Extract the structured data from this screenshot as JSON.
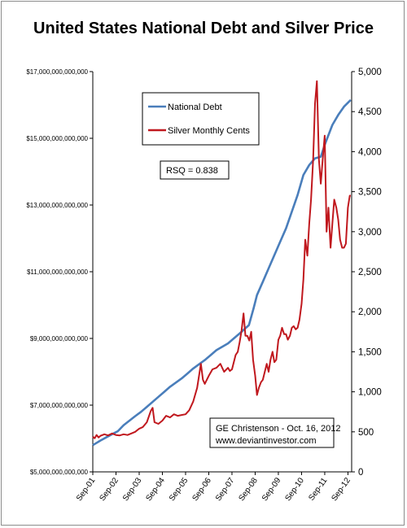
{
  "chart_data": {
    "type": "line",
    "title": "United States National Debt and Silver Price",
    "x_ticks": [
      "Sep-01",
      "Sep-02",
      "Sep-03",
      "Sep-04",
      "Sep-05",
      "Sep-06",
      "Sep-07",
      "Sep-08",
      "Sep-09",
      "Sep-10",
      "Sep-11",
      "Sep-12"
    ],
    "x_range": [
      2001.67,
      2012.83
    ],
    "y_left": {
      "ticks": [
        "$5,000,000,000,000",
        "$7,000,000,000,000",
        "$9,000,000,000,000",
        "$11,000,000,000,000",
        "$13,000,000,000,000",
        "$15,000,000,000,000",
        "$17,000,000,000,000"
      ],
      "range": [
        5000000000000,
        17000000000000
      ]
    },
    "y_right": {
      "ticks": [
        "0",
        "500",
        "1,000",
        "1,500",
        "2,000",
        "2,500",
        "3,000",
        "3,500",
        "4,000",
        "4,500",
        "5,000"
      ],
      "range": [
        0,
        5000
      ]
    },
    "legend": {
      "placement": "top-left",
      "entries": [
        "National Debt",
        "Silver Monthly Cents"
      ]
    },
    "annotations": {
      "rsq": "RSQ = 0.838",
      "credit_line1": "GE Christenson - Oct. 16, 2012",
      "credit_line2": "www.deviantinvestor.com"
    },
    "series": [
      {
        "name": "National Debt",
        "axis": "left",
        "color": "#4a7ebb",
        "points": [
          [
            2001.67,
            5800000000000.0
          ],
          [
            2002.0,
            5940000000000.0
          ],
          [
            2002.5,
            6130000000000.0
          ],
          [
            2002.75,
            6220000000000.0
          ],
          [
            2003.0,
            6400000000000.0
          ],
          [
            2003.5,
            6670000000000.0
          ],
          [
            2003.75,
            6800000000000.0
          ],
          [
            2004.0,
            6950000000000.0
          ],
          [
            2004.5,
            7250000000000.0
          ],
          [
            2004.75,
            7400000000000.0
          ],
          [
            2005.0,
            7550000000000.0
          ],
          [
            2005.5,
            7800000000000.0
          ],
          [
            2005.75,
            7950000000000.0
          ],
          [
            2006.0,
            8100000000000.0
          ],
          [
            2006.5,
            8350000000000.0
          ],
          [
            2006.75,
            8500000000000.0
          ],
          [
            2007.0,
            8650000000000.0
          ],
          [
            2007.5,
            8850000000000.0
          ],
          [
            2007.75,
            9000000000000.0
          ],
          [
            2008.0,
            9150000000000.0
          ],
          [
            2008.4,
            9400000000000.0
          ],
          [
            2008.6,
            9900000000000.0
          ],
          [
            2008.75,
            10300000000000.0
          ],
          [
            2009.0,
            10700000000000.0
          ],
          [
            2009.25,
            11100000000000.0
          ],
          [
            2009.5,
            11500000000000.0
          ],
          [
            2009.75,
            11900000000000.0
          ],
          [
            2010.0,
            12300000000000.0
          ],
          [
            2010.25,
            12800000000000.0
          ],
          [
            2010.5,
            13300000000000.0
          ],
          [
            2010.75,
            13900000000000.0
          ],
          [
            2011.0,
            14200000000000.0
          ],
          [
            2011.25,
            14400000000000.0
          ],
          [
            2011.5,
            14450000000000.0
          ],
          [
            2011.67,
            14800000000000.0
          ],
          [
            2011.75,
            14950000000000.0
          ],
          [
            2012.0,
            15400000000000.0
          ],
          [
            2012.25,
            15700000000000.0
          ],
          [
            2012.5,
            15950000000000.0
          ],
          [
            2012.79,
            16150000000000.0
          ]
        ]
      },
      {
        "name": "Silver Monthly Cents",
        "axis": "right",
        "color": "#c0181e",
        "points": [
          [
            2001.67,
            440
          ],
          [
            2001.75,
            420
          ],
          [
            2001.83,
            460
          ],
          [
            2001.92,
            430
          ],
          [
            2002.0,
            450
          ],
          [
            2002.17,
            470
          ],
          [
            2002.33,
            455
          ],
          [
            2002.5,
            480
          ],
          [
            2002.67,
            460
          ],
          [
            2002.83,
            455
          ],
          [
            2003.0,
            470
          ],
          [
            2003.17,
            460
          ],
          [
            2003.33,
            480
          ],
          [
            2003.5,
            500
          ],
          [
            2003.67,
            540
          ],
          [
            2003.83,
            560
          ],
          [
            2004.0,
            620
          ],
          [
            2004.17,
            760
          ],
          [
            2004.25,
            800
          ],
          [
            2004.33,
            620
          ],
          [
            2004.5,
            600
          ],
          [
            2004.67,
            640
          ],
          [
            2004.83,
            700
          ],
          [
            2005.0,
            680
          ],
          [
            2005.17,
            720
          ],
          [
            2005.33,
            700
          ],
          [
            2005.5,
            710
          ],
          [
            2005.67,
            720
          ],
          [
            2005.83,
            770
          ],
          [
            2006.0,
            880
          ],
          [
            2006.17,
            1050
          ],
          [
            2006.33,
            1350
          ],
          [
            2006.42,
            1150
          ],
          [
            2006.5,
            1100
          ],
          [
            2006.67,
            1200
          ],
          [
            2006.83,
            1280
          ],
          [
            2007.0,
            1300
          ],
          [
            2007.17,
            1350
          ],
          [
            2007.33,
            1250
          ],
          [
            2007.5,
            1300
          ],
          [
            2007.58,
            1260
          ],
          [
            2007.67,
            1280
          ],
          [
            2007.83,
            1460
          ],
          [
            2007.92,
            1500
          ],
          [
            2008.0,
            1620
          ],
          [
            2008.08,
            1760
          ],
          [
            2008.17,
            1980
          ],
          [
            2008.25,
            1700
          ],
          [
            2008.33,
            1700
          ],
          [
            2008.42,
            1640
          ],
          [
            2008.5,
            1750
          ],
          [
            2008.58,
            1400
          ],
          [
            2008.67,
            1200
          ],
          [
            2008.75,
            960
          ],
          [
            2008.83,
            1050
          ],
          [
            2008.92,
            1120
          ],
          [
            2009.0,
            1150
          ],
          [
            2009.17,
            1350
          ],
          [
            2009.25,
            1250
          ],
          [
            2009.33,
            1400
          ],
          [
            2009.42,
            1500
          ],
          [
            2009.5,
            1370
          ],
          [
            2009.58,
            1400
          ],
          [
            2009.67,
            1650
          ],
          [
            2009.75,
            1700
          ],
          [
            2009.83,
            1800
          ],
          [
            2009.92,
            1720
          ],
          [
            2010.0,
            1720
          ],
          [
            2010.08,
            1650
          ],
          [
            2010.17,
            1700
          ],
          [
            2010.25,
            1800
          ],
          [
            2010.33,
            1820
          ],
          [
            2010.42,
            1780
          ],
          [
            2010.5,
            1800
          ],
          [
            2010.58,
            1900
          ],
          [
            2010.67,
            2100
          ],
          [
            2010.75,
            2400
          ],
          [
            2010.83,
            2900
          ],
          [
            2010.92,
            2700
          ],
          [
            2011.0,
            3100
          ],
          [
            2011.08,
            3400
          ],
          [
            2011.17,
            3900
          ],
          [
            2011.25,
            4600
          ],
          [
            2011.33,
            4880
          ],
          [
            2011.42,
            3900
          ],
          [
            2011.5,
            3600
          ],
          [
            2011.58,
            3900
          ],
          [
            2011.67,
            4200
          ],
          [
            2011.75,
            3000
          ],
          [
            2011.83,
            3300
          ],
          [
            2011.92,
            2800
          ],
          [
            2012.0,
            3100
          ],
          [
            2012.08,
            3400
          ],
          [
            2012.17,
            3300
          ],
          [
            2012.25,
            3150
          ],
          [
            2012.33,
            2900
          ],
          [
            2012.42,
            2800
          ],
          [
            2012.5,
            2800
          ],
          [
            2012.58,
            2850
          ],
          [
            2012.67,
            3300
          ],
          [
            2012.75,
            3450
          ],
          [
            2012.79,
            3450
          ]
        ]
      }
    ]
  }
}
